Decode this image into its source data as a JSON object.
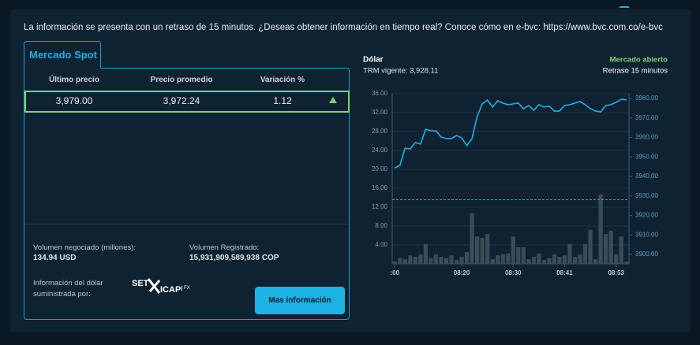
{
  "notice": "La información se presenta con un retraso de 15 minutos. ¿Deseas obtener información en tiempo real? Conoce cómo en e-bvc: https://www.bvc.com.co/e-bvc",
  "panel": {
    "tab": "Mercado Spot",
    "columns": [
      "Último precio",
      "Precio promedio",
      "Variación %"
    ],
    "row": [
      "3,979.00",
      "3,972.24",
      "1.12"
    ],
    "volume_label": "Volumen negociado (millones):",
    "volume_value": "134.94 USD",
    "registered_label": "Volumen Registrado:",
    "registered_value": "15,931,909,589,938 COP",
    "provider_label": "Información del dólar suministrada por:",
    "logo": [
      "SET",
      "ICAP",
      "FX"
    ],
    "button": "Mas información"
  },
  "chart_data": {
    "type": "line",
    "title": "Dólar",
    "subtitle": "TRM vigente: 3,928.11",
    "status": "Mercado abierto",
    "note": "Retraso 15 minutos",
    "categories": [
      ":00",
      null,
      null,
      null,
      null,
      null,
      null,
      null,
      null,
      null,
      null,
      null,
      null,
      "08:20",
      null,
      null,
      null,
      null,
      null,
      null,
      null,
      null,
      null,
      "08:30",
      null,
      null,
      null,
      null,
      null,
      null,
      null,
      null,
      null,
      "08:41",
      null,
      null,
      null,
      null,
      null,
      null,
      null,
      null,
      null,
      "08:53",
      null,
      null
    ],
    "series": [
      {
        "type": "bar",
        "color": "#3b4b58",
        "values": [
          0.5,
          1.2,
          1.0,
          1.8,
          1.5,
          2.0,
          4.2,
          1.2,
          2.0,
          1.5,
          1.2,
          1.8,
          0.8,
          1.5,
          2.5,
          10.7,
          5.8,
          5.5,
          6.3,
          1.0,
          1.8,
          2.0,
          2.2,
          5.8,
          3.5,
          3.5,
          1.0,
          1.5,
          2.2,
          0.8,
          1.2,
          2.0,
          1.5,
          1.8,
          4.2,
          1.5,
          2.0,
          4.2,
          7.2,
          1.0,
          14.7,
          6.3,
          7.0,
          2.0,
          5.8,
          0.5
        ]
      },
      {
        "type": "line",
        "axis": "y2",
        "color": "#1fb0e6",
        "values": [
          3944.4,
          3945.7,
          3954.5,
          3954.1,
          3957.4,
          3956.6,
          3964.2,
          3963.4,
          3963.4,
          3960.2,
          3959.4,
          3959.4,
          3961.0,
          3959.8,
          3955.8,
          3959.4,
          3970.7,
          3977.2,
          3979.2,
          3975.6,
          3978.8,
          3977.6,
          3976.8,
          3977.2,
          3977.6,
          3974.7,
          3976.4,
          3973.9,
          3976.8,
          3975.6,
          3976.0,
          3973.5,
          3973.5,
          3976.4,
          3976.8,
          3977.6,
          3978.4,
          3976.8,
          3974.7,
          3973.5,
          3973.1,
          3976.4,
          3976.8,
          3978.0,
          3979.6,
          3979.2
        ]
      }
    ],
    "reference_line": {
      "value": 3928.11,
      "color": "#e8506a",
      "axis": "y2"
    },
    "ylim": [
      0,
      36
    ],
    "yticks": [
      {
        "value": 4,
        "label": "4.00"
      },
      {
        "value": 8,
        "label": "8.00"
      },
      {
        "value": 12,
        "label": "12.00"
      },
      {
        "value": 16,
        "label": "16.00"
      },
      {
        "value": 20,
        "label": "20.00"
      },
      {
        "value": 24,
        "label": "24.00"
      },
      {
        "value": 28,
        "label": "28.00"
      },
      {
        "value": 32,
        "label": "32.00"
      },
      {
        "value": 36,
        "label": "36.00"
      }
    ],
    "y2lim": [
      3895.2,
      3982.4
    ],
    "y2ticks": [
      {
        "value": 3900,
        "label": "3900.00"
      },
      {
        "value": 3910,
        "label": "3910.00"
      },
      {
        "value": 3920,
        "label": "3920.00"
      },
      {
        "value": 3930,
        "label": "3930.00"
      },
      {
        "value": 3940,
        "label": "3940.00"
      },
      {
        "value": 3950,
        "label": "3950.00"
      },
      {
        "value": 3960,
        "label": "3960.00"
      },
      {
        "value": 3970,
        "label": "3970.00"
      },
      {
        "value": 3980,
        "label": "3980.00"
      }
    ],
    "grid": true
  }
}
